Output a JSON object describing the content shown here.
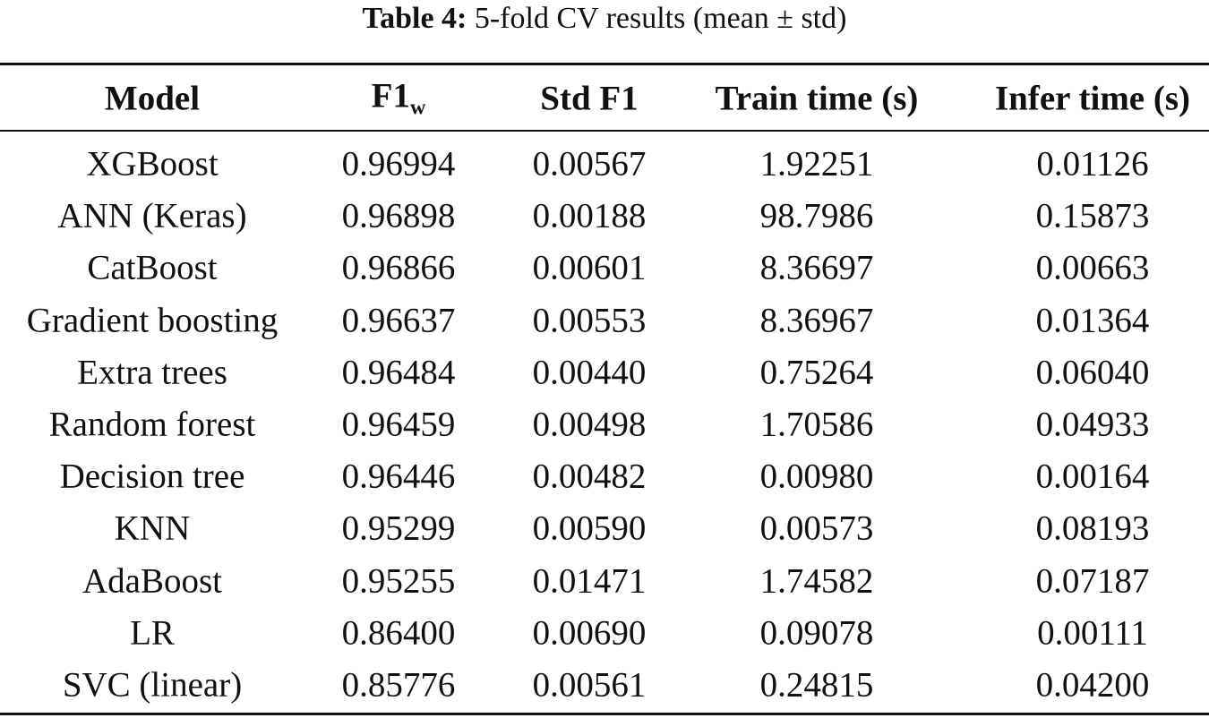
{
  "caption": {
    "label": "Table 4:",
    "text": "5-fold CV results (mean ± std)"
  },
  "table": {
    "header": [
      {
        "main": "Model"
      },
      {
        "main": "F1",
        "sub": "w"
      },
      {
        "main": "Std F1"
      },
      {
        "main": "Train time (s)"
      },
      {
        "main": "Infer time (s)"
      }
    ],
    "rows": [
      [
        "XGBoost",
        "0.96994",
        "0.00567",
        "1.92251",
        "0.01126"
      ],
      [
        "ANN (Keras)",
        "0.96898",
        "0.00188",
        "98.7986",
        "0.15873"
      ],
      [
        "CatBoost",
        "0.96866",
        "0.00601",
        "8.36697",
        "0.00663"
      ],
      [
        "Gradient boosting",
        "0.96637",
        "0.00553",
        "8.36967",
        "0.01364"
      ],
      [
        "Extra trees",
        "0.96484",
        "0.00440",
        "0.75264",
        "0.06040"
      ],
      [
        "Random forest",
        "0.96459",
        "0.00498",
        "1.70586",
        "0.04933"
      ],
      [
        "Decision tree",
        "0.96446",
        "0.00482",
        "0.00980",
        "0.00164"
      ],
      [
        "KNN",
        "0.95299",
        "0.00590",
        "0.00573",
        "0.08193"
      ],
      [
        "AdaBoost",
        "0.95255",
        "0.01471",
        "1.74582",
        "0.07187"
      ],
      [
        "LR",
        "0.86400",
        "0.00690",
        "0.09078",
        "0.00111"
      ],
      [
        "SVC (linear)",
        "0.85776",
        "0.00561",
        "0.24815",
        "0.04200"
      ]
    ]
  }
}
